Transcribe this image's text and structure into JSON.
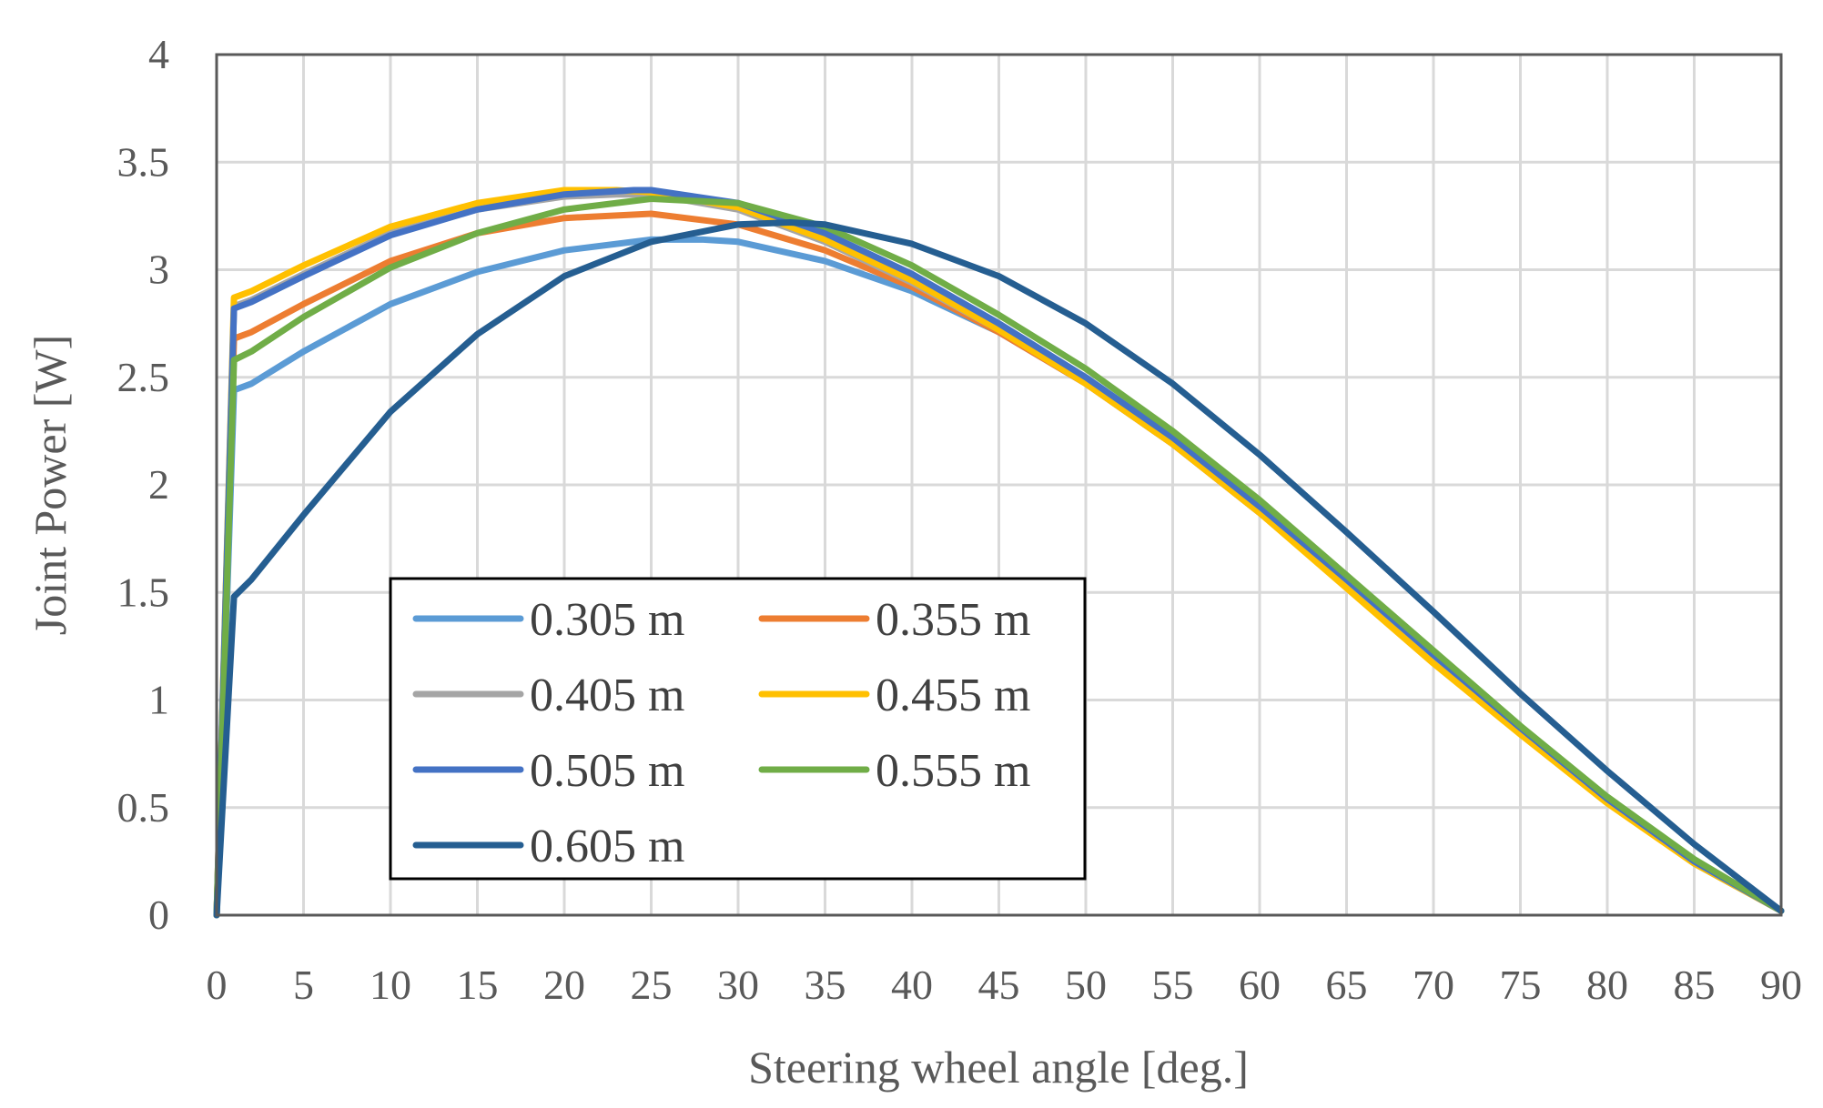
{
  "chart_data": {
    "type": "line",
    "title": "",
    "xlabel": "Steering wheel angle [deg.]",
    "ylabel": "Joint Power [W]",
    "xlim": [
      0,
      90
    ],
    "ylim": [
      0,
      4
    ],
    "xticks": [
      0,
      5,
      10,
      15,
      20,
      25,
      30,
      35,
      40,
      45,
      50,
      55,
      60,
      65,
      70,
      75,
      80,
      85,
      90
    ],
    "yticks": [
      0,
      0.5,
      1,
      1.5,
      2,
      2.5,
      3,
      3.5,
      4
    ],
    "ytick_labels": [
      "0",
      "0.5",
      "1",
      "1.5",
      "2",
      "2.5",
      "3",
      "3.5",
      "4"
    ],
    "grid": true,
    "legend_position": "lower-left",
    "series": [
      {
        "name": "0.305 m",
        "color": "#5b9bd5",
        "x": [
          0,
          1,
          2,
          5,
          10,
          15,
          20,
          25,
          28,
          30,
          35,
          40,
          45,
          50,
          55,
          60,
          65,
          70,
          75,
          80,
          85,
          90
        ],
        "y": [
          0,
          2.44,
          2.47,
          2.62,
          2.84,
          2.99,
          3.09,
          3.14,
          3.14,
          3.13,
          3.04,
          2.9,
          2.71,
          2.47,
          2.19,
          1.87,
          1.54,
          1.19,
          0.85,
          0.53,
          0.24,
          0.02
        ]
      },
      {
        "name": "0.355 m",
        "color": "#ed7d31",
        "x": [
          0,
          1,
          2,
          5,
          10,
          15,
          20,
          25,
          30,
          35,
          40,
          45,
          50,
          55,
          60,
          65,
          70,
          75,
          80,
          85,
          90
        ],
        "y": [
          0,
          2.68,
          2.71,
          2.84,
          3.04,
          3.17,
          3.24,
          3.26,
          3.21,
          3.09,
          2.92,
          2.71,
          2.47,
          2.19,
          1.87,
          1.53,
          1.19,
          0.85,
          0.53,
          0.25,
          0.02
        ]
      },
      {
        "name": "0.405 m",
        "color": "#a5a5a5",
        "x": [
          0,
          1,
          2,
          5,
          10,
          15,
          20,
          23,
          25,
          30,
          35,
          40,
          45,
          50,
          55,
          60,
          65,
          70,
          75,
          80,
          85,
          90
        ],
        "y": [
          0,
          2.83,
          2.86,
          2.98,
          3.17,
          3.28,
          3.34,
          3.35,
          3.35,
          3.28,
          3.13,
          2.94,
          2.72,
          2.48,
          2.2,
          1.88,
          1.54,
          1.19,
          0.86,
          0.54,
          0.25,
          0.02
        ]
      },
      {
        "name": "0.455 m",
        "color": "#ffc000",
        "x": [
          0,
          1,
          2,
          5,
          10,
          15,
          20,
          23,
          25,
          30,
          35,
          40,
          45,
          50,
          55,
          60,
          65,
          70,
          75,
          80,
          85,
          90
        ],
        "y": [
          0,
          2.87,
          2.9,
          3.02,
          3.2,
          3.31,
          3.37,
          3.37,
          3.36,
          3.29,
          3.14,
          2.95,
          2.72,
          2.47,
          2.19,
          1.87,
          1.52,
          1.17,
          0.84,
          0.52,
          0.24,
          0.02
        ]
      },
      {
        "name": "0.505 m",
        "color": "#4472c4",
        "x": [
          0,
          1,
          2,
          5,
          10,
          15,
          20,
          24,
          25,
          30,
          35,
          40,
          45,
          50,
          55,
          60,
          65,
          70,
          75,
          80,
          85,
          90
        ],
        "y": [
          0,
          2.82,
          2.85,
          2.97,
          3.16,
          3.28,
          3.35,
          3.37,
          3.37,
          3.31,
          3.17,
          2.98,
          2.75,
          2.5,
          2.22,
          1.9,
          1.56,
          1.21,
          0.87,
          0.54,
          0.25,
          0.02
        ]
      },
      {
        "name": "0.555 m",
        "color": "#70ad47",
        "x": [
          0,
          1,
          2,
          5,
          10,
          15,
          20,
          25,
          30,
          35,
          40,
          45,
          50,
          55,
          60,
          65,
          70,
          75,
          80,
          85,
          90
        ],
        "y": [
          0,
          2.58,
          2.62,
          2.78,
          3.01,
          3.17,
          3.28,
          3.33,
          3.31,
          3.2,
          3.02,
          2.79,
          2.54,
          2.25,
          1.93,
          1.58,
          1.23,
          0.88,
          0.55,
          0.26,
          0.02
        ]
      },
      {
        "name": "0.605 m",
        "color": "#255e91",
        "x": [
          0,
          1,
          2,
          5,
          10,
          15,
          20,
          25,
          30,
          33,
          35,
          40,
          45,
          50,
          55,
          60,
          65,
          70,
          75,
          80,
          85,
          90
        ],
        "y": [
          0,
          1.48,
          1.56,
          1.86,
          2.34,
          2.7,
          2.97,
          3.13,
          3.21,
          3.22,
          3.21,
          3.12,
          2.97,
          2.75,
          2.47,
          2.14,
          1.78,
          1.41,
          1.03,
          0.67,
          0.33,
          0.02
        ]
      }
    ]
  }
}
